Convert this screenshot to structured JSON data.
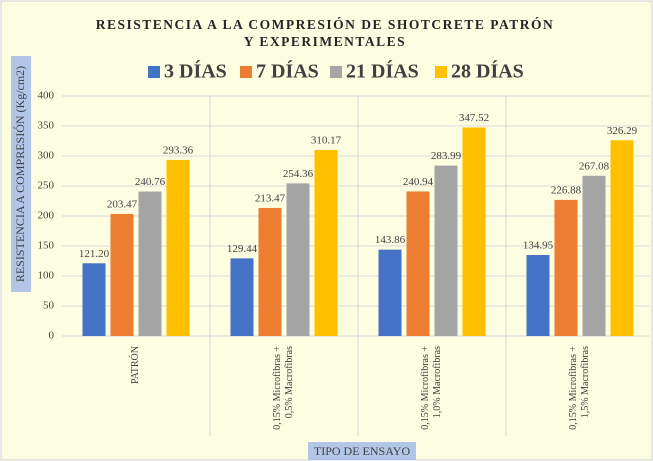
{
  "chart_data": {
    "type": "bar",
    "title": "RESISTENCIA A LA COMPRESIÓN DE SHOTCRETE PATRÓN Y EXPERIMENTALES",
    "x_label": "TIPO DE ENSAYO",
    "y_label": "RESISTENCIA A COMPRESIÓN (Kg/cm2)",
    "categories": [
      "PATRÓN",
      "0,15% Microfibras +\n0,5% Macrofibras",
      "0,15% Microfibras +\n1,0% Macrofibras",
      "0,15% Microfibras +\n1,5% Macrofibras"
    ],
    "series": [
      {
        "name": "3 DÍAS",
        "color": "#4472c4",
        "values": [
          121.2,
          129.44,
          143.86,
          134.95
        ],
        "value_labels": [
          "121.20",
          "129.44",
          "143.86",
          "134.95"
        ]
      },
      {
        "name": "7 DÍAS",
        "color": "#ed7d31",
        "values": [
          203.47,
          213.47,
          240.94,
          226.88
        ],
        "value_labels": [
          "203.47",
          "213.47",
          "240.94",
          "226.88"
        ]
      },
      {
        "name": "21 DÍAS",
        "color": "#a5a5a5",
        "values": [
          240.76,
          254.36,
          283.99,
          267.08
        ],
        "value_labels": [
          "240.76",
          "254.36",
          "283.99",
          "267.08"
        ]
      },
      {
        "name": "28 DÍAS",
        "color": "#ffc000",
        "values": [
          293.36,
          310.17,
          347.52,
          326.29
        ],
        "value_labels": [
          "293.36",
          "310.17",
          "347.52",
          "326.29"
        ]
      }
    ],
    "ylim": [
      0,
      400
    ],
    "yticks": [
      0,
      50,
      100,
      150,
      200,
      250,
      300,
      350,
      400
    ],
    "grid": true,
    "legend": "top"
  }
}
